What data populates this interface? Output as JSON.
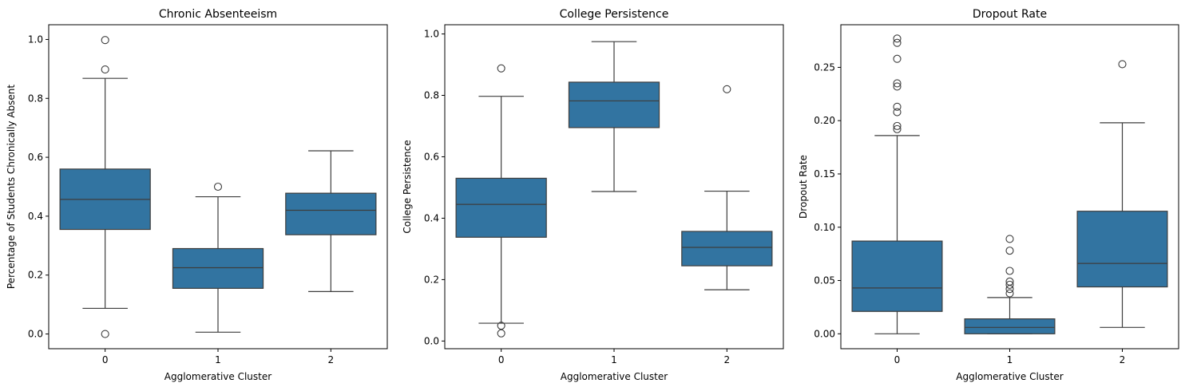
{
  "colors": {
    "box_fill": "#3274a1",
    "line": "#3d3d3d",
    "frame": "#000000",
    "background": "#ffffff"
  },
  "chart_data": [
    {
      "type": "box",
      "title": "Chronic Absenteeism",
      "xlabel": "Agglomerative Cluster",
      "ylabel": "Percentage of Students Chronically Absent",
      "categories": [
        "0",
        "1",
        "2"
      ],
      "ylim": [
        -0.05,
        1.05
      ],
      "yticks": [
        0.0,
        0.2,
        0.4,
        0.6,
        0.8,
        1.0
      ],
      "ytick_labels": [
        "0.0",
        "0.2",
        "0.4",
        "0.6",
        "0.8",
        "1.0"
      ],
      "boxes": [
        {
          "category": "0",
          "whisker_low": 0.087,
          "q1": 0.355,
          "median": 0.457,
          "q3": 0.56,
          "whisker_high": 0.868,
          "outliers": [
            0.0,
            0.898,
            0.998
          ]
        },
        {
          "category": "1",
          "whisker_low": 0.006,
          "q1": 0.155,
          "median": 0.225,
          "q3": 0.29,
          "whisker_high": 0.466,
          "outliers": [
            0.5
          ]
        },
        {
          "category": "2",
          "whisker_low": 0.144,
          "q1": 0.337,
          "median": 0.42,
          "q3": 0.478,
          "whisker_high": 0.622,
          "outliers": []
        }
      ]
    },
    {
      "type": "box",
      "title": "College Persistence",
      "xlabel": "Agglomerative Cluster",
      "ylabel": "College Persistence",
      "categories": [
        "0",
        "1",
        "2"
      ],
      "ylim": [
        -0.025,
        1.03
      ],
      "yticks": [
        0.0,
        0.2,
        0.4,
        0.6,
        0.8,
        1.0
      ],
      "ytick_labels": [
        "0.0",
        "0.2",
        "0.4",
        "0.6",
        "0.8",
        "1.0"
      ],
      "boxes": [
        {
          "category": "0",
          "whisker_low": 0.058,
          "q1": 0.338,
          "median": 0.445,
          "q3": 0.53,
          "whisker_high": 0.797,
          "outliers": [
            0.025,
            0.05,
            0.888
          ]
        },
        {
          "category": "1",
          "whisker_low": 0.487,
          "q1": 0.695,
          "median": 0.782,
          "q3": 0.843,
          "whisker_high": 0.975,
          "outliers": []
        },
        {
          "category": "2",
          "whisker_low": 0.167,
          "q1": 0.245,
          "median": 0.305,
          "q3": 0.357,
          "whisker_high": 0.488,
          "outliers": [
            0.82
          ]
        }
      ]
    },
    {
      "type": "box",
      "title": "Dropout Rate",
      "xlabel": "Agglomerative Cluster",
      "ylabel": "Dropout Rate",
      "categories": [
        "0",
        "1",
        "2"
      ],
      "ylim": [
        -0.014,
        0.29
      ],
      "yticks": [
        0.0,
        0.05,
        0.1,
        0.15,
        0.2,
        0.25
      ],
      "ytick_labels": [
        "0.00",
        "0.05",
        "0.10",
        "0.15",
        "0.20",
        "0.25"
      ],
      "boxes": [
        {
          "category": "0",
          "whisker_low": 0.0,
          "q1": 0.021,
          "median": 0.043,
          "q3": 0.087,
          "whisker_high": 0.186,
          "outliers": [
            0.192,
            0.195,
            0.208,
            0.213,
            0.232,
            0.235,
            0.258,
            0.273,
            0.277
          ]
        },
        {
          "category": "1",
          "whisker_low": 0.0,
          "q1": 0.0,
          "median": 0.006,
          "q3": 0.014,
          "whisker_high": 0.034,
          "outliers": [
            0.038,
            0.042,
            0.046,
            0.049,
            0.059,
            0.078,
            0.089
          ]
        },
        {
          "category": "2",
          "whisker_low": 0.006,
          "q1": 0.044,
          "median": 0.066,
          "q3": 0.115,
          "whisker_high": 0.198,
          "outliers": [
            0.253
          ]
        }
      ]
    }
  ]
}
